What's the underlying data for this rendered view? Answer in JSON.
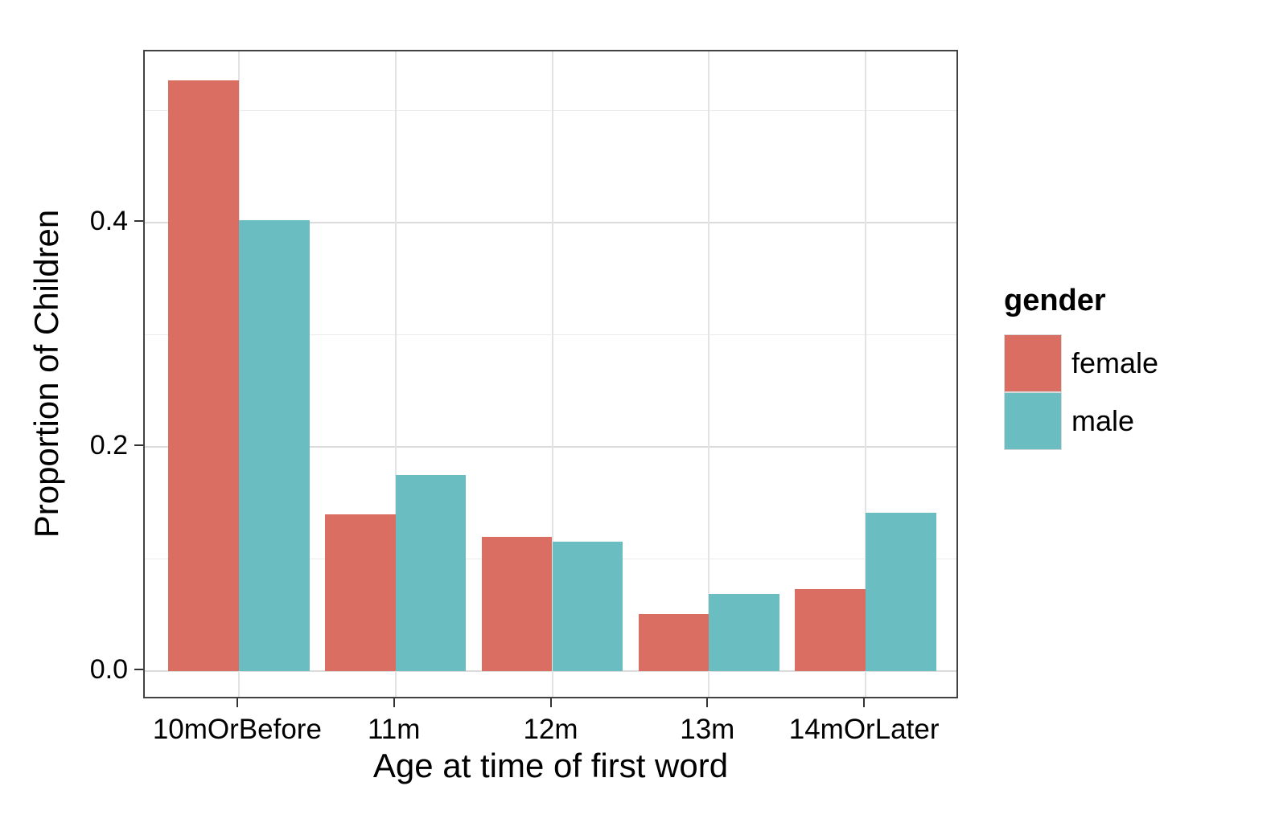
{
  "chart_data": {
    "type": "bar",
    "bar_mode": "grouped",
    "categories": [
      "10mOrBefore",
      "11m",
      "12m",
      "13m",
      "14mOrLater"
    ],
    "series": [
      {
        "name": "female",
        "color": "#db6e62",
        "values": [
          0.527,
          0.14,
          0.12,
          0.051,
          0.073
        ]
      },
      {
        "name": "male",
        "color": "#6abec2",
        "values": [
          0.402,
          0.175,
          0.115,
          0.069,
          0.141
        ]
      }
    ],
    "title": "",
    "xlabel": "Age at time of first word",
    "ylabel": "Proportion of Children",
    "ylim": [
      -0.026,
      0.553
    ],
    "yticks": [
      0.0,
      0.2,
      0.4
    ],
    "ytick_labels": [
      "0.0",
      "0.2",
      "0.4"
    ],
    "minor_yticks": [
      0.1,
      0.3,
      0.5
    ],
    "grid": true,
    "legend": {
      "title": "gender",
      "position": "right",
      "entries": [
        "female",
        "male"
      ]
    }
  }
}
